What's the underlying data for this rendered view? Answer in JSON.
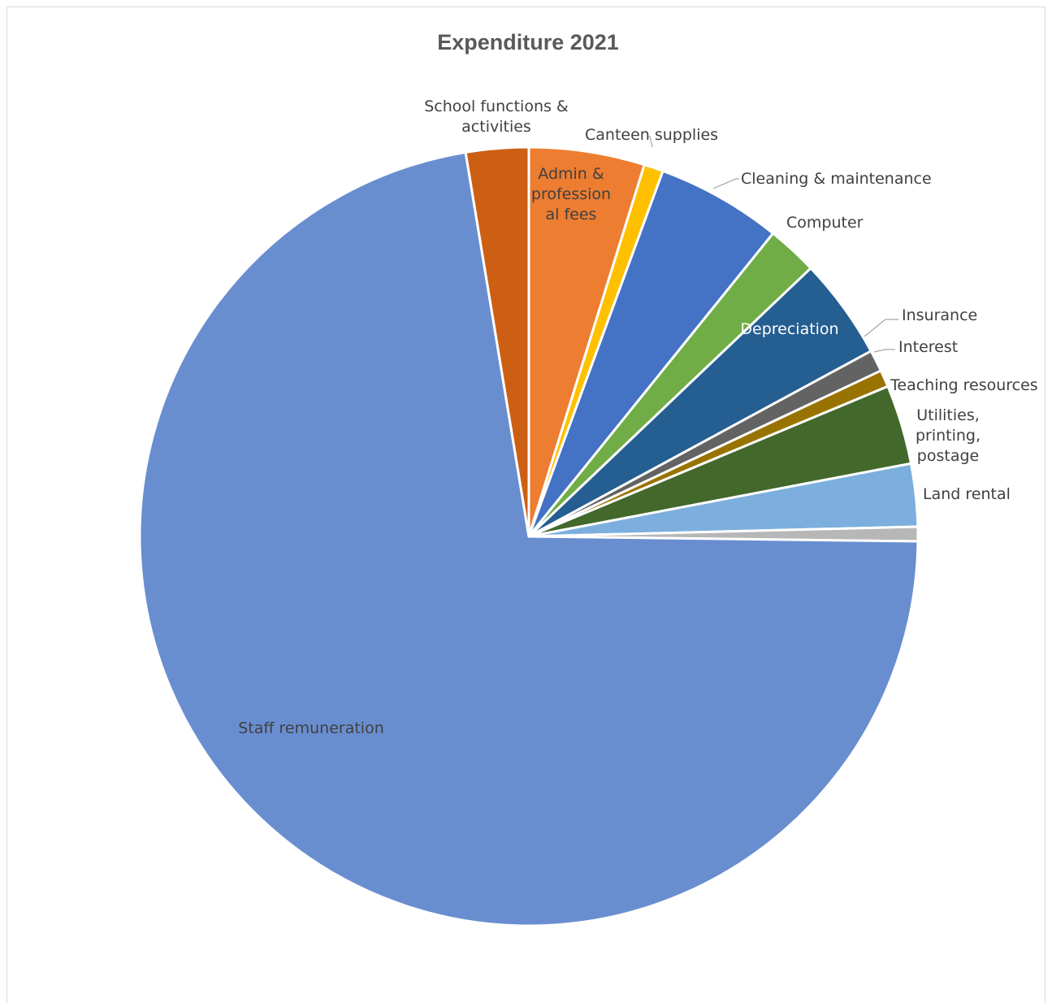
{
  "chart_data": {
    "type": "pie",
    "title": "Expenditure 2021",
    "legend": "none",
    "slices": [
      {
        "label": "Admin & profession al fees",
        "value": 4.8,
        "color": "#ed7d31",
        "label_lines": [
          "Admin &",
          "profession",
          "al fees"
        ]
      },
      {
        "label": "Canteen supplies",
        "value": 0.8,
        "color": "#ffc000",
        "label_lines": [
          "Canteen supplies"
        ]
      },
      {
        "label": "Cleaning & maintenance",
        "value": 5.2,
        "color": "#4472c4",
        "label_lines": [
          "Cleaning & maintenance"
        ]
      },
      {
        "label": "Computer",
        "value": 2.1,
        "color": "#70ad47",
        "label_lines": [
          "Computer"
        ]
      },
      {
        "label": "Depreciation",
        "value": 4.2,
        "color": "#255e91",
        "label_lines": [
          "Depreciation"
        ]
      },
      {
        "label": "Insurance",
        "value": 0.9,
        "color": "#636363",
        "label_lines": [
          "Insurance"
        ]
      },
      {
        "label": "Interest",
        "value": 0.7,
        "color": "#997300",
        "label_lines": [
          "Interest"
        ]
      },
      {
        "label": "Teaching resources",
        "value": 3.3,
        "color": "#43682b",
        "label_lines": [
          "Teaching resources"
        ]
      },
      {
        "label": "Utilities, printing, postage",
        "value": 2.6,
        "color": "#7cafdd",
        "label_lines": [
          "Utilities,",
          "printing,",
          "postage"
        ]
      },
      {
        "label": "Land rental",
        "value": 0.6,
        "color": "#b7b7b7",
        "label_lines": [
          "Land rental"
        ]
      },
      {
        "label": "Staff remuneration",
        "value": 72.2,
        "color": "#698ed0",
        "label_lines": [
          "Staff remuneration"
        ]
      },
      {
        "label": "School functions & activities",
        "value": 2.6,
        "color": "#cd5f14",
        "label_lines": [
          "School functions &",
          "activities"
        ]
      }
    ]
  }
}
